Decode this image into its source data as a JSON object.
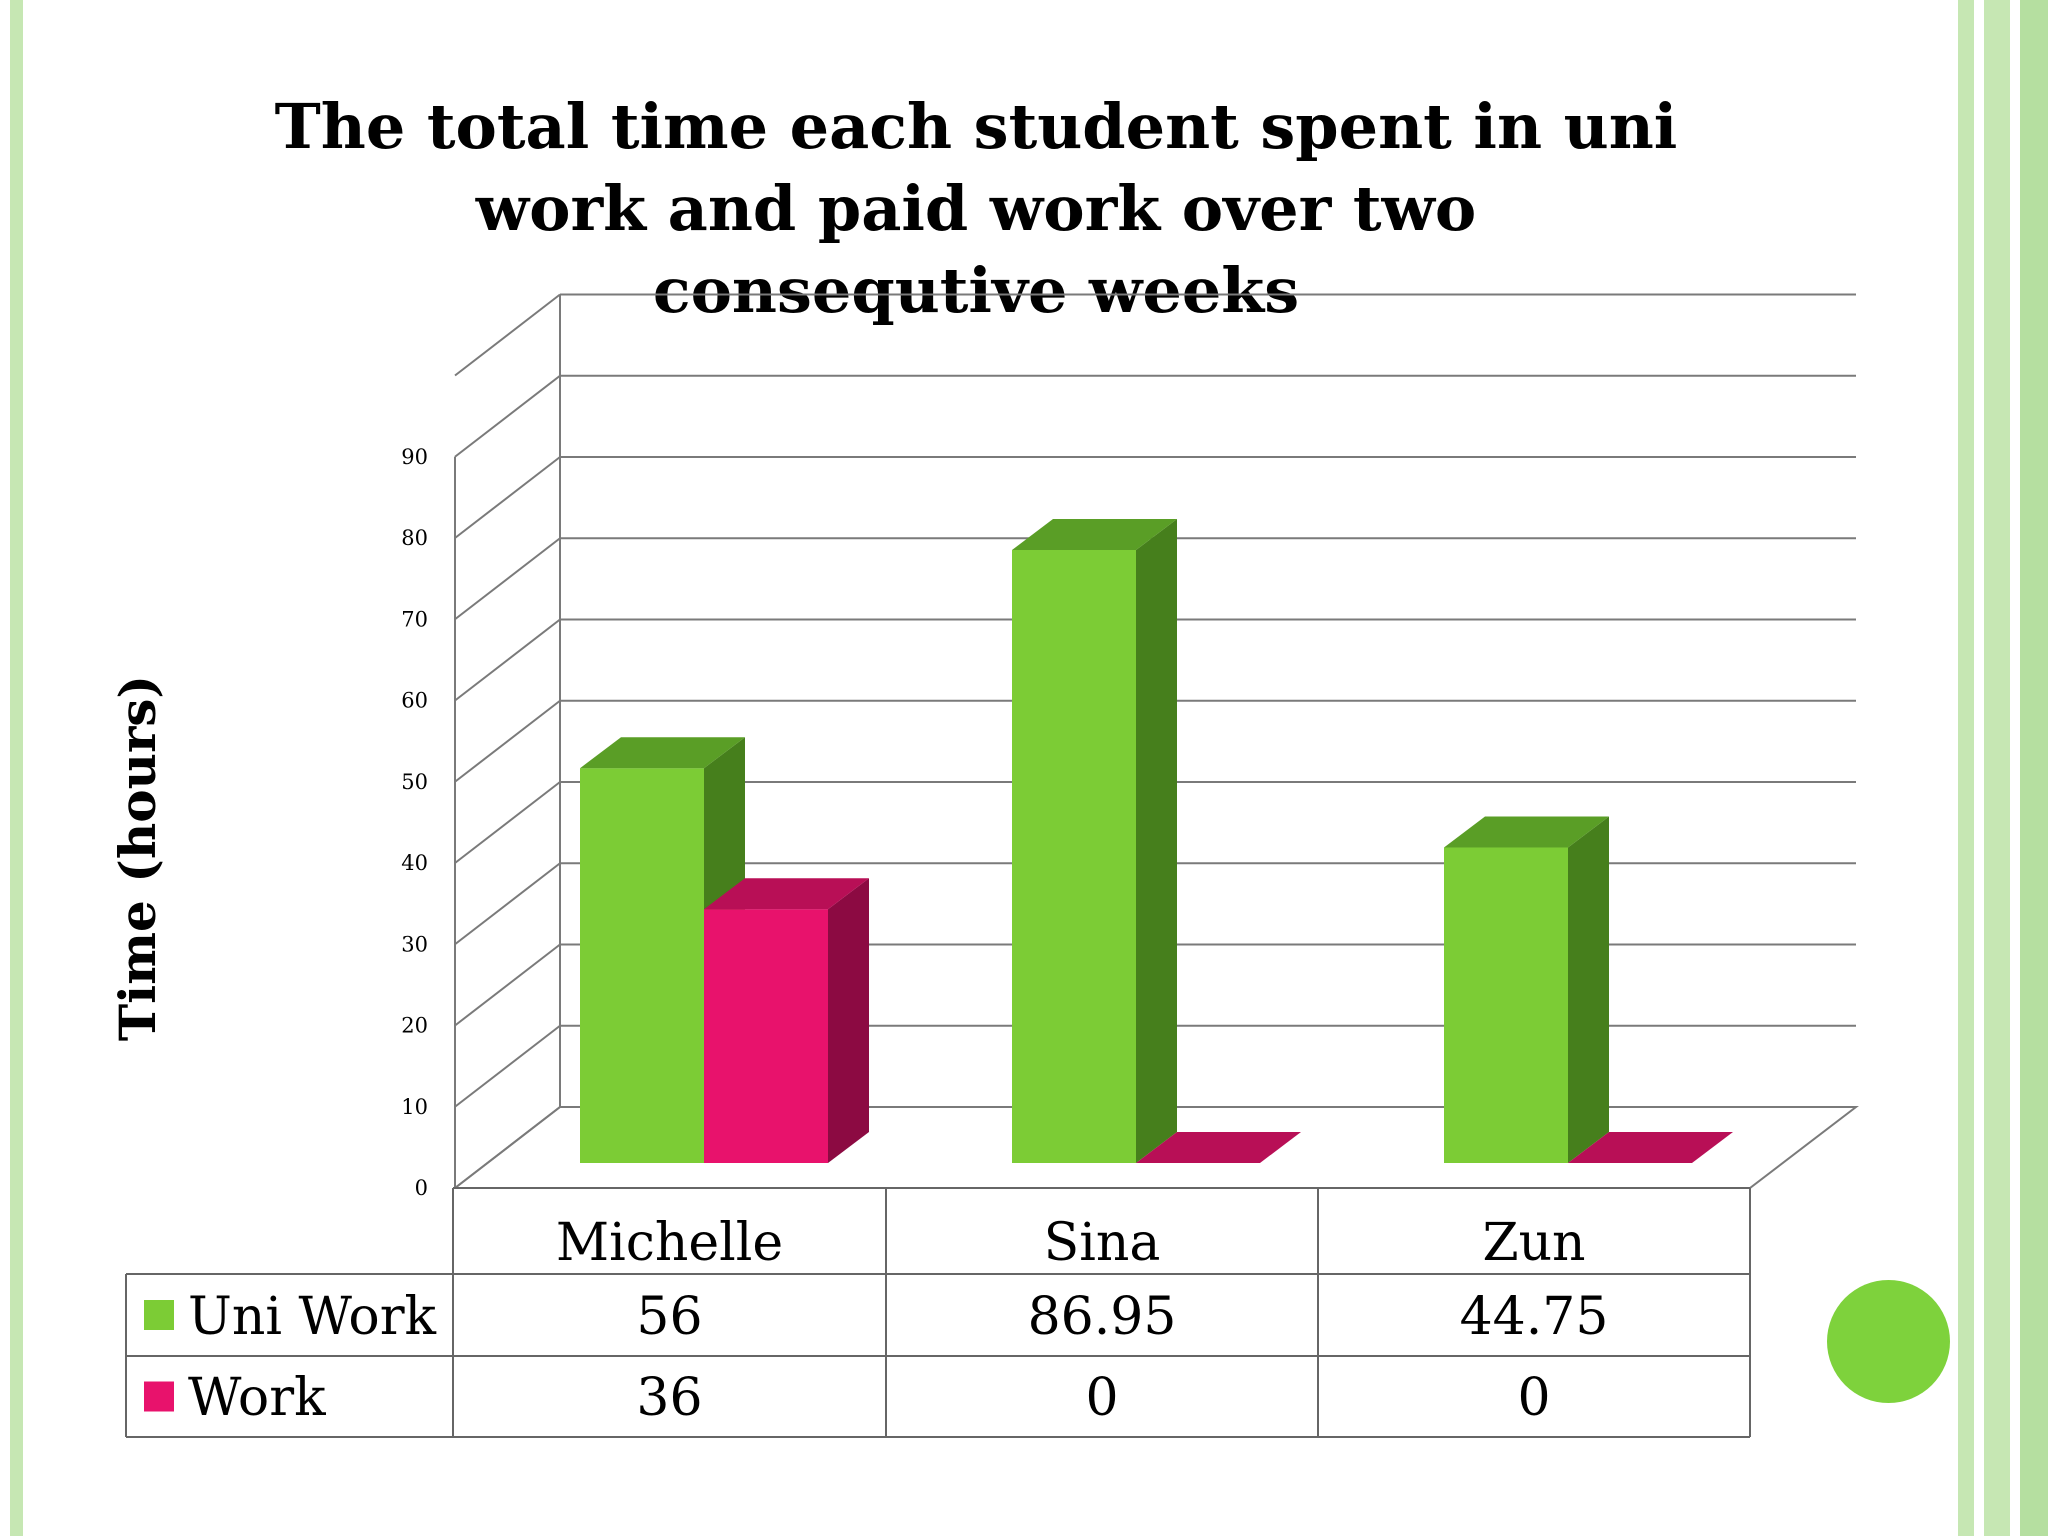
{
  "chart_data": {
    "type": "bar",
    "title": "The total time each student spent in uni work and paid work over two consequtive weeks",
    "title_lines": [
      "The total time each student spent in uni",
      "work and paid work over two",
      "consequtive weeks"
    ],
    "ylabel": "Time (hours)",
    "xlabel": "",
    "ylim": [
      0,
      100
    ],
    "yticks": [
      0,
      10,
      20,
      30,
      40,
      50,
      60,
      70,
      80,
      90
    ],
    "categories": [
      "Michelle",
      "Sina",
      "Zun"
    ],
    "series": [
      {
        "name": "Uni Work",
        "values": [
          56,
          86.95,
          44.75
        ],
        "value_labels": [
          "56",
          "86.95",
          "44.75"
        ],
        "color": "#7ccc35",
        "side_color": "#467f1c",
        "top_color": "#5a9e26"
      },
      {
        "name": "Work",
        "values": [
          36,
          0,
          0
        ],
        "value_labels": [
          "36",
          "0",
          "0"
        ],
        "color": "#e8126c",
        "side_color": "#8c0a42",
        "top_color": "#b80f56"
      }
    ],
    "grid": true,
    "legend": "data-table"
  },
  "colors": {
    "accent": "#7ed23c",
    "stripe": "#c6e7b3"
  }
}
